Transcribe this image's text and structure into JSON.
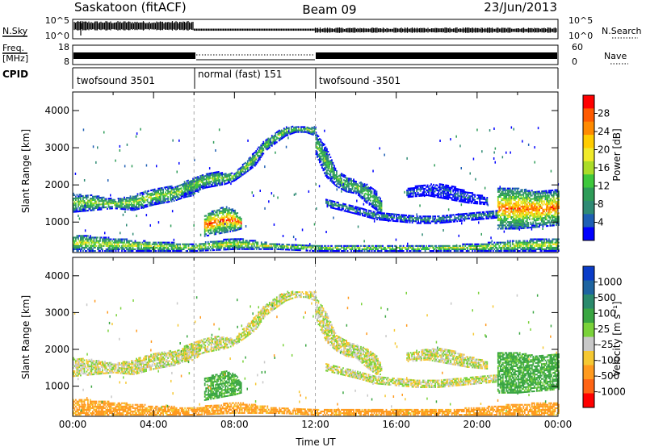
{
  "header": {
    "station": "Saskatoon (fitACF)",
    "beam": "Beam 09",
    "date": "23/Jun/2013"
  },
  "panels": {
    "nsky": {
      "left_label": "N.Sky",
      "left_ticks": [
        "10^5",
        "10^0"
      ],
      "right_ticks": [
        "10^5",
        "10^0"
      ],
      "right_label": "N.Search"
    },
    "freq": {
      "left_label_1": "Freq.",
      "left_label_2": "[MHz]",
      "left_ticks": [
        "18",
        "8"
      ],
      "right_ticks": [
        "60",
        "0"
      ],
      "right_label": "Nave"
    },
    "cpid": {
      "label": "CPID",
      "segments": [
        {
          "label": "twofsound 3501",
          "start": 0,
          "end": 6
        },
        {
          "label": "normal (fast) 151",
          "start": 6,
          "end": 12
        },
        {
          "label": "twofsound -3501",
          "start": 12,
          "end": 24
        }
      ]
    }
  },
  "colorbars": {
    "power": {
      "label": "Power [dB]",
      "ticks": [
        "28",
        "24",
        "20",
        "16",
        "12",
        "8",
        "4"
      ],
      "colors": [
        "#ff0000",
        "#ff5a00",
        "#ff8a00",
        "#ffcc00",
        "#f0ea2a",
        "#aadc28",
        "#3ec83c",
        "#2e9c58",
        "#2f8a74",
        "#1e5fb4",
        "#0000ff"
      ]
    },
    "velocity": {
      "label": "Velocity [m s⁻¹]",
      "ticks": [
        "1000",
        "500",
        "100",
        "25",
        "-25",
        "-100",
        "-500",
        "-1000"
      ],
      "colors": [
        "#0a3cc8",
        "#1e64a0",
        "#2a8a6c",
        "#3aa642",
        "#7ad23a",
        "#c8c8c8",
        "#f5c832",
        "#ff9a1e",
        "#ff6414",
        "#ff0000"
      ]
    }
  },
  "chart_data": [
    {
      "type": "heatmap",
      "name": "power",
      "ylabel": "Slant Range [km]",
      "xlim": [
        0,
        24
      ],
      "ylim": [
        180,
        4500
      ],
      "yticks": [
        "1000",
        "2000",
        "3000",
        "4000"
      ],
      "ytick_values": [
        1000,
        2000,
        3000,
        4000
      ],
      "colorbar_label": "Power [dB]",
      "clim": [
        0,
        30
      ],
      "bands": [
        {
          "t": [
            0,
            1,
            2,
            3,
            4,
            5,
            5.5,
            6,
            6.2
          ],
          "lo": [
            1250,
            1300,
            1350,
            1300,
            1450,
            1550,
            1650,
            1700,
            1800
          ],
          "hi": [
            1750,
            1700,
            1600,
            1700,
            1900,
            1950,
            2050,
            2100,
            2200
          ],
          "p": 18
        },
        {
          "t": [
            5.5,
            6,
            6.5,
            7,
            7.5,
            8,
            8.5,
            9,
            9.5,
            10,
            10.5,
            11,
            11.5,
            12
          ],
          "lo": [
            1700,
            1800,
            1900,
            1950,
            2000,
            2100,
            2300,
            2500,
            2900,
            3100,
            3300,
            3400,
            3400,
            3300
          ],
          "hi": [
            2100,
            2200,
            2300,
            2350,
            2300,
            2300,
            2600,
            2900,
            3200,
            3400,
            3550,
            3550,
            3550,
            3550
          ],
          "p": 17
        },
        {
          "t": [
            12,
            12.5,
            13,
            13.5,
            14,
            14.5,
            15,
            15.3
          ],
          "lo": [
            2800,
            2200,
            1950,
            1800,
            1750,
            1500,
            1300,
            1150
          ],
          "hi": [
            3400,
            3000,
            2400,
            2200,
            2100,
            2000,
            1800,
            1500
          ],
          "p": 16
        },
        {
          "t": [
            12.5,
            14,
            15,
            16,
            17,
            18,
            19,
            20,
            21
          ],
          "lo": [
            1400,
            1200,
            1050,
            1000,
            950,
            950,
            1000,
            1050,
            1100
          ],
          "hi": [
            1600,
            1400,
            1250,
            1200,
            1150,
            1150,
            1200,
            1250,
            1300
          ],
          "p": 12
        },
        {
          "t": [
            16.5,
            17.5,
            18.5,
            19.5,
            20.5
          ],
          "lo": [
            1650,
            1700,
            1600,
            1500,
            1450
          ],
          "hi": [
            1900,
            2000,
            2000,
            1800,
            1650
          ],
          "p": 9
        },
        {
          "t": [
            21,
            22,
            23,
            24
          ],
          "lo": [
            800,
            800,
            850,
            900
          ],
          "hi": [
            1900,
            1900,
            1800,
            1850
          ],
          "p": 24
        },
        {
          "t": [
            0,
            2,
            4,
            6,
            8,
            10,
            12,
            14,
            16,
            18,
            20,
            22,
            24
          ],
          "lo": [
            200,
            200,
            200,
            200,
            250,
            250,
            200,
            200,
            200,
            200,
            200,
            200,
            200
          ],
          "hi": [
            650,
            550,
            450,
            400,
            550,
            400,
            350,
            350,
            350,
            350,
            400,
            500,
            550
          ],
          "p": 19
        },
        {
          "t": [
            6.5,
            7,
            7.5,
            8,
            8.3
          ],
          "lo": [
            600,
            650,
            700,
            750,
            800
          ],
          "hi": [
            1200,
            1300,
            1400,
            1300,
            1100
          ],
          "p": 25
        }
      ]
    },
    {
      "type": "heatmap",
      "name": "velocity",
      "ylabel": "Slant Range [km]",
      "xlabel": "Time UT",
      "xlim": [
        0,
        24
      ],
      "ylim": [
        180,
        4500
      ],
      "xticks": [
        "00:00",
        "04:00",
        "08:00",
        "12:00",
        "16:00",
        "20:00",
        "00:00"
      ],
      "xtick_values": [
        0,
        4,
        8,
        12,
        16,
        20,
        24
      ],
      "yticks": [
        "1000",
        "2000",
        "3000",
        "4000"
      ],
      "ytick_values": [
        1000,
        2000,
        3000,
        4000
      ],
      "colorbar_label": "Velocity [m s⁻¹]",
      "clim": [
        -1000,
        1000
      ],
      "bands": [
        {
          "t": [
            0,
            1,
            2,
            3,
            4,
            5,
            5.5,
            6,
            6.2
          ],
          "lo": [
            1250,
            1300,
            1350,
            1300,
            1450,
            1550,
            1650,
            1700,
            1800
          ],
          "hi": [
            1750,
            1700,
            1600,
            1700,
            1900,
            1950,
            2050,
            2100,
            2200
          ],
          "v": 0
        },
        {
          "t": [
            5.5,
            6,
            6.5,
            7,
            7.5,
            8,
            8.5,
            9,
            9.5,
            10,
            10.5,
            11,
            11.5,
            12
          ],
          "lo": [
            1700,
            1800,
            1900,
            1950,
            2000,
            2100,
            2300,
            2500,
            2900,
            3100,
            3300,
            3400,
            3400,
            3300
          ],
          "hi": [
            2100,
            2200,
            2300,
            2350,
            2300,
            2300,
            2600,
            2900,
            3200,
            3400,
            3550,
            3550,
            3550,
            3550
          ],
          "v": 0
        },
        {
          "t": [
            12,
            12.5,
            13,
            13.5,
            14,
            14.5,
            15,
            15.3
          ],
          "lo": [
            2800,
            2200,
            1950,
            1800,
            1750,
            1500,
            1300,
            1150
          ],
          "hi": [
            3400,
            3000,
            2400,
            2200,
            2100,
            2000,
            1800,
            1500
          ],
          "v": 0
        },
        {
          "t": [
            12.5,
            14,
            15,
            16,
            17,
            18,
            19,
            20,
            21
          ],
          "lo": [
            1400,
            1200,
            1050,
            1000,
            950,
            950,
            1000,
            1050,
            1100
          ],
          "hi": [
            1600,
            1400,
            1250,
            1200,
            1150,
            1150,
            1200,
            1250,
            1300
          ],
          "v": 0
        },
        {
          "t": [
            16.5,
            17.5,
            18.5,
            19.5,
            20.5
          ],
          "lo": [
            1650,
            1700,
            1600,
            1500,
            1450
          ],
          "hi": [
            1900,
            2000,
            2000,
            1800,
            1650
          ],
          "v": 0
        },
        {
          "t": [
            21,
            22,
            23,
            24
          ],
          "lo": [
            800,
            800,
            850,
            900
          ],
          "hi": [
            1900,
            1900,
            1800,
            1850
          ],
          "v": 150
        },
        {
          "t": [
            0,
            2,
            4,
            6,
            8,
            10,
            12,
            14,
            16,
            18,
            20,
            22,
            24
          ],
          "lo": [
            200,
            200,
            200,
            200,
            250,
            250,
            200,
            200,
            200,
            200,
            200,
            200,
            200
          ],
          "hi": [
            650,
            550,
            450,
            400,
            550,
            400,
            350,
            350,
            350,
            350,
            400,
            500,
            550
          ],
          "v": -150
        },
        {
          "t": [
            6.5,
            7,
            7.5,
            8,
            8.3
          ],
          "lo": [
            600,
            650,
            700,
            750,
            800
          ],
          "hi": [
            1200,
            1300,
            1400,
            1300,
            1100
          ],
          "v": 150
        }
      ]
    }
  ]
}
